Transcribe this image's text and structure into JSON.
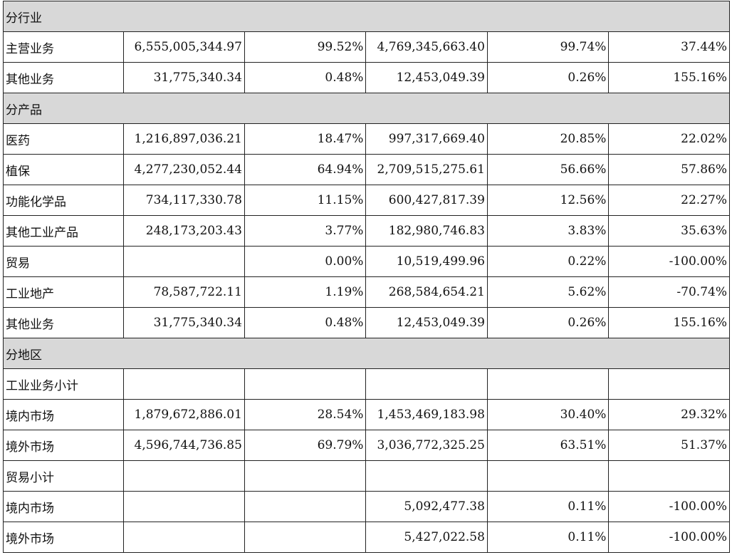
{
  "sections": [
    {
      "title": "分行业",
      "rows": [
        {
          "label": "主营业务",
          "c1": "6,555,005,344.97",
          "c2": "99.52%",
          "c3": "4,769,345,663.40",
          "c4": "99.74%",
          "c5": "37.44%"
        },
        {
          "label": "其他业务",
          "c1": "31,775,340.34",
          "c2": "0.48%",
          "c3": "12,453,049.39",
          "c4": "0.26%",
          "c5": "155.16%"
        }
      ]
    },
    {
      "title": "分产品",
      "rows": [
        {
          "label": "医药",
          "c1": "1,216,897,036.21",
          "c2": "18.47%",
          "c3": "997,317,669.40",
          "c4": "20.85%",
          "c5": "22.02%"
        },
        {
          "label": "植保",
          "c1": "4,277,230,052.44",
          "c2": "64.94%",
          "c3": "2,709,515,275.61",
          "c4": "56.66%",
          "c5": "57.86%"
        },
        {
          "label": "功能化学品",
          "c1": "734,117,330.78",
          "c2": "11.15%",
          "c3": "600,427,817.39",
          "c4": "12.56%",
          "c5": "22.27%"
        },
        {
          "label": "其他工业产品",
          "c1": "248,173,203.43",
          "c2": "3.77%",
          "c3": "182,980,746.83",
          "c4": "3.83%",
          "c5": "35.63%"
        },
        {
          "label": "贸易",
          "c1": "",
          "c2": "0.00%",
          "c3": "10,519,499.96",
          "c4": "0.22%",
          "c5": "-100.00%"
        },
        {
          "label": "工业地产",
          "c1": "78,587,722.11",
          "c2": "1.19%",
          "c3": "268,584,654.21",
          "c4": "5.62%",
          "c5": "-70.74%"
        },
        {
          "label": "其他业务",
          "c1": "31,775,340.34",
          "c2": "0.48%",
          "c3": "12,453,049.39",
          "c4": "0.26%",
          "c5": "155.16%"
        }
      ]
    },
    {
      "title": "分地区",
      "rows": [
        {
          "label": "工业业务小计",
          "c1": "",
          "c2": "",
          "c3": "",
          "c4": "",
          "c5": ""
        },
        {
          "label": "境内市场",
          "c1": "1,879,672,886.01",
          "c2": "28.54%",
          "c3": "1,453,469,183.98",
          "c4": "30.40%",
          "c5": "29.32%"
        },
        {
          "label": "境外市场",
          "c1": "4,596,744,736.85",
          "c2": "69.79%",
          "c3": "3,036,772,325.25",
          "c4": "63.51%",
          "c5": "51.37%"
        },
        {
          "label": "贸易小计",
          "c1": "",
          "c2": "",
          "c3": "",
          "c4": "",
          "c5": ""
        },
        {
          "label": "境内市场",
          "c1": "",
          "c2": "",
          "c3": "5,092,477.38",
          "c4": "0.11%",
          "c5": "-100.00%"
        },
        {
          "label": "境外市场",
          "c1": "",
          "c2": "",
          "c3": "5,427,022.58",
          "c4": "0.11%",
          "c5": "-100.00%"
        }
      ]
    }
  ]
}
